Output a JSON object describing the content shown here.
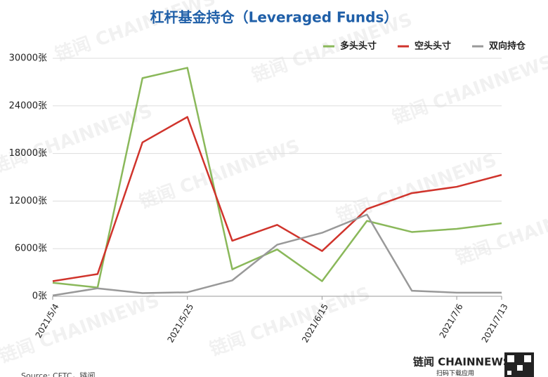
{
  "chart_data": {
    "type": "line",
    "title": "杠杆基金持仓（Leveraged Funds）",
    "categories": [
      "2021/5/4",
      null,
      null,
      "2021/5/25",
      null,
      null,
      "2021/6/15",
      null,
      null,
      "2021/7/6",
      "2021/7/13"
    ],
    "series": [
      {
        "name": "多头头寸",
        "color": "#8ab85a",
        "values": [
          1700,
          1100,
          27500,
          28800,
          3400,
          5900,
          1900,
          9500,
          8100,
          8500,
          9200
        ]
      },
      {
        "name": "空头头寸",
        "color": "#d0342c",
        "values": [
          1900,
          2800,
          19400,
          22600,
          7000,
          9000,
          5700,
          11000,
          13000,
          13800,
          15300
        ]
      },
      {
        "name": "双向持仓",
        "color": "#999999",
        "values": [
          100,
          1000,
          400,
          500,
          2000,
          6500,
          8000,
          10300,
          700,
          450,
          450
        ]
      }
    ],
    "ylim": [
      0,
      30000
    ],
    "yticks": [
      {
        "value": 0,
        "label": "0张"
      },
      {
        "value": 6000,
        "label": "6000张"
      },
      {
        "value": 12000,
        "label": "12000张"
      },
      {
        "value": 18000,
        "label": "18000张"
      },
      {
        "value": 24000,
        "label": "24000张"
      },
      {
        "value": 30000,
        "label": "30000张"
      }
    ],
    "grid": true,
    "legend": "top-right",
    "watermark": "链闻 CHAINNEWS",
    "brand": "链闻 CHAINNEWS",
    "brand_sub": "扫码下载应用",
    "source": "Source: CFTC，链闻"
  }
}
